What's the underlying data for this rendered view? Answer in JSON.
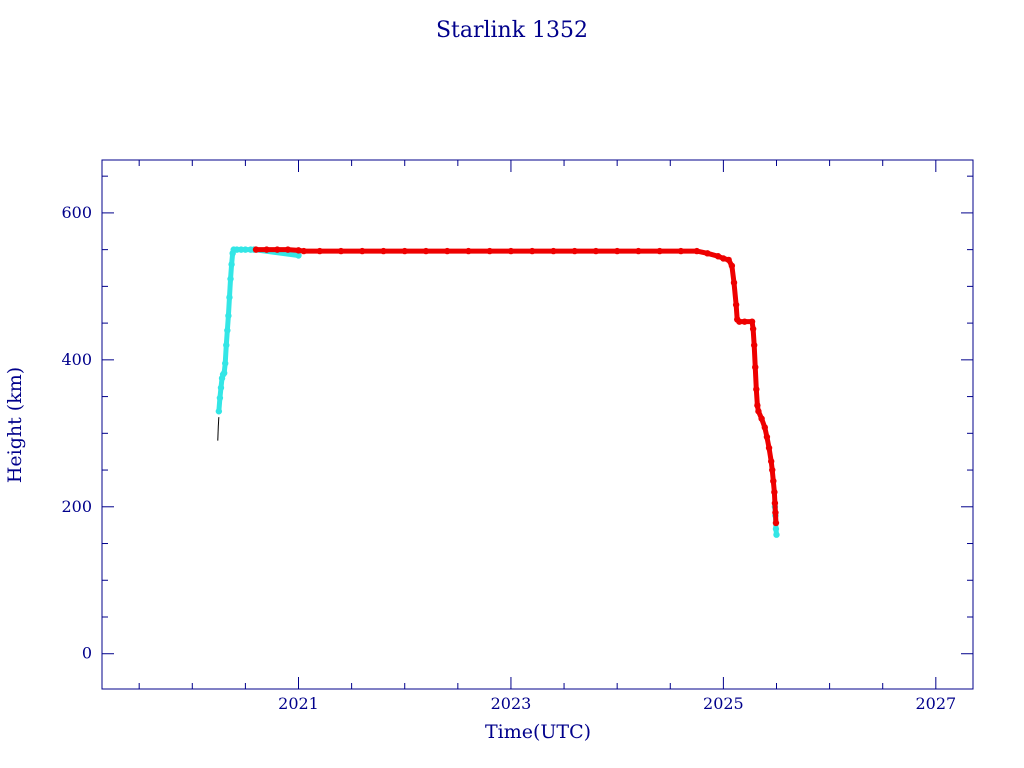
{
  "colors": {
    "axes": "#00008b",
    "text": "#00008b",
    "cyan_series": "#33e6e6",
    "red_series": "#ee0000",
    "black_series": "#000000"
  },
  "chart_data": {
    "type": "scatter",
    "title": "Starlink 1352",
    "xlabel": "Time(UTC)",
    "ylabel": "Height (km)",
    "xlim": [
      2019.15,
      2027.35
    ],
    "ylim": [
      -48,
      672
    ],
    "x_ticks": [
      {
        "value": 2021,
        "label": "2021"
      },
      {
        "value": 2023,
        "label": "2023"
      },
      {
        "value": 2025,
        "label": "2025"
      },
      {
        "value": 2027,
        "label": "2027"
      }
    ],
    "x_minor_ticks": [
      2019.5,
      2020,
      2020.5,
      2021.5,
      2022,
      2022.5,
      2023.5,
      2024,
      2024.5,
      2025.5,
      2026,
      2026.5
    ],
    "y_ticks": [
      {
        "value": 0,
        "label": "0"
      },
      {
        "value": 200,
        "label": "200"
      },
      {
        "value": 400,
        "label": "400"
      },
      {
        "value": 600,
        "label": "600"
      }
    ],
    "y_minor_ticks": [
      -50,
      50,
      100,
      150,
      250,
      300,
      350,
      450,
      500,
      550,
      650
    ],
    "grid": false,
    "legend": "none",
    "series": [
      {
        "color": "#000000",
        "points": [
          [
            2020.24,
            290
          ],
          [
            2020.245,
            310
          ],
          [
            2020.25,
            322
          ]
        ]
      },
      {
        "color": "#33e6e6",
        "points": [
          [
            2020.25,
            330
          ],
          [
            2020.26,
            348
          ],
          [
            2020.27,
            362
          ],
          [
            2020.28,
            375
          ],
          [
            2020.29,
            380
          ],
          [
            2020.3,
            382
          ],
          [
            2020.31,
            395
          ],
          [
            2020.32,
            420
          ],
          [
            2020.33,
            440
          ],
          [
            2020.34,
            460
          ],
          [
            2020.35,
            485
          ],
          [
            2020.36,
            510
          ],
          [
            2020.37,
            530
          ],
          [
            2020.38,
            545
          ],
          [
            2020.39,
            550
          ],
          [
            2020.42,
            550
          ],
          [
            2020.46,
            550
          ],
          [
            2020.5,
            550
          ],
          [
            2020.55,
            550
          ],
          [
            2020.58,
            550
          ],
          [
            2021.0,
            542
          ],
          [
            2025.485,
            200
          ],
          [
            2025.49,
            188
          ],
          [
            2025.495,
            170
          ],
          [
            2025.5,
            162
          ]
        ]
      },
      {
        "color": "#ee0000",
        "points": [
          [
            2020.6,
            550
          ],
          [
            2020.7,
            550
          ],
          [
            2020.8,
            550
          ],
          [
            2020.9,
            550
          ],
          [
            2021.0,
            549
          ],
          [
            2021.05,
            548
          ],
          [
            2021.2,
            548
          ],
          [
            2021.4,
            548
          ],
          [
            2021.6,
            548
          ],
          [
            2021.8,
            548
          ],
          [
            2022.0,
            548
          ],
          [
            2022.2,
            548
          ],
          [
            2022.4,
            548
          ],
          [
            2022.6,
            548
          ],
          [
            2022.8,
            548
          ],
          [
            2023.0,
            548
          ],
          [
            2023.2,
            548
          ],
          [
            2023.4,
            548
          ],
          [
            2023.6,
            548
          ],
          [
            2023.8,
            548
          ],
          [
            2024.0,
            548
          ],
          [
            2024.2,
            548
          ],
          [
            2024.4,
            548
          ],
          [
            2024.6,
            548
          ],
          [
            2024.75,
            548
          ],
          [
            2024.85,
            545
          ],
          [
            2024.95,
            541
          ],
          [
            2025.0,
            538
          ],
          [
            2025.05,
            536
          ],
          [
            2025.08,
            528
          ],
          [
            2025.1,
            505
          ],
          [
            2025.12,
            475
          ],
          [
            2025.13,
            455
          ],
          [
            2025.15,
            452
          ],
          [
            2025.2,
            452
          ],
          [
            2025.27,
            452
          ],
          [
            2025.28,
            442
          ],
          [
            2025.29,
            420
          ],
          [
            2025.3,
            390
          ],
          [
            2025.31,
            360
          ],
          [
            2025.32,
            338
          ],
          [
            2025.33,
            330
          ],
          [
            2025.36,
            320
          ],
          [
            2025.39,
            308
          ],
          [
            2025.41,
            295
          ],
          [
            2025.43,
            280
          ],
          [
            2025.45,
            262
          ],
          [
            2025.46,
            250
          ],
          [
            2025.47,
            235
          ],
          [
            2025.48,
            220
          ],
          [
            2025.485,
            205
          ],
          [
            2025.49,
            192
          ],
          [
            2025.495,
            178
          ]
        ]
      }
    ]
  }
}
